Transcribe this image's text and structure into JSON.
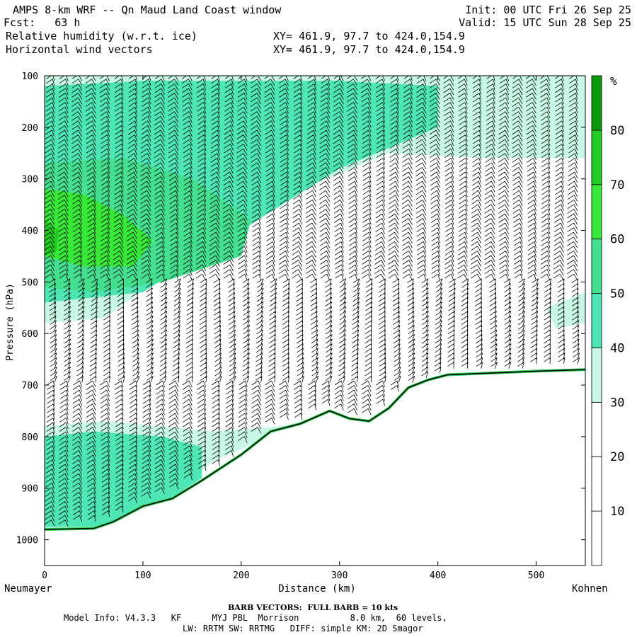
{
  "header": {
    "model_title": "AMPS 8-km WRF -- Qn Maud Land Coast window",
    "fcst_label": "Fcst:",
    "fcst_value": "63 h",
    "init_label": "Init:",
    "init_value": "00 UTC Fri 26 Sep 25",
    "valid_label": "Valid:",
    "valid_value": "15 UTC Sun 28 Sep 25",
    "field_fill": "Relative humidity (w.r.t. ice)",
    "field_vectors": "Horizontal wind vectors",
    "xy_fill": "XY= 461.9, 97.7 to 424.0,154.9",
    "xy_vectors": "XY= 461.9, 97.7 to 424.0,154.9"
  },
  "footer": {
    "barb_note": "BARB VECTORS:  FULL BARB = 10 kts",
    "model_info_1": "Model Info: V4.3.3   KF      MYJ PBL  Morrison          8.0 km,  60 levels,",
    "model_info_2": "LW: RRTM SW: RRTMG   DIFF: simple KM: 2D Smagor"
  },
  "chart_data": {
    "type": "cross-section",
    "xlabel": "Distance (km)",
    "ylabel": "Pressure (hPa)",
    "x_start_label": "Neumayer",
    "x_end_label": "Kohnen",
    "xlim": [
      0,
      550
    ],
    "ylim": [
      100,
      1050
    ],
    "x_ticks": [
      0,
      100,
      200,
      300,
      400,
      500
    ],
    "y_ticks": [
      100,
      200,
      300,
      400,
      500,
      600,
      700,
      800,
      900,
      1000
    ],
    "colorbar": {
      "unit": "%",
      "levels": [
        10,
        20,
        30,
        40,
        50,
        60,
        70,
        80
      ],
      "colors": [
        "#ffffff",
        "#ffffff",
        "#ffffff",
        "#c8f7e6",
        "#4de6b4",
        "#44e090",
        "#38e838",
        "#22cc22",
        "#0a9a0a"
      ]
    },
    "terrain_pressure_hPa": {
      "x": [
        0,
        50,
        70,
        100,
        130,
        160,
        200,
        230,
        260,
        290,
        310,
        330,
        350,
        370,
        390,
        410,
        450,
        500,
        550
      ],
      "p": [
        980,
        978,
        965,
        935,
        920,
        885,
        835,
        790,
        775,
        750,
        765,
        770,
        745,
        705,
        690,
        680,
        677,
        673,
        670
      ]
    },
    "rh_regions": [
      {
        "rh": 35,
        "x": [
          0,
          60,
          150,
          250,
          350,
          450,
          550,
          550,
          450,
          350,
          250,
          150,
          60,
          0
        ],
        "p": [
          100,
          100,
          100,
          100,
          100,
          100,
          100,
          260,
          260,
          250,
          330,
          450,
          570,
          580
        ]
      },
      {
        "rh": 45,
        "x": [
          0,
          100,
          200,
          300,
          400,
          400,
          300,
          200,
          100,
          0
        ],
        "p": [
          120,
          110,
          110,
          110,
          120,
          200,
          280,
          400,
          520,
          540
        ]
      },
      {
        "rh": 55,
        "x": [
          0,
          80,
          150,
          210,
          200,
          120,
          50,
          0
        ],
        "p": [
          270,
          260,
          300,
          380,
          450,
          500,
          520,
          510
        ]
      },
      {
        "rh": 65,
        "x": [
          0,
          40,
          80,
          110,
          90,
          40,
          0
        ],
        "p": [
          320,
          330,
          370,
          420,
          470,
          470,
          450
        ]
      },
      {
        "rh": 75,
        "x": [
          0,
          15,
          12,
          0
        ],
        "p": [
          380,
          400,
          440,
          450
        ]
      },
      {
        "rh": 35,
        "x": [
          0,
          60,
          120,
          170,
          240,
          290,
          290,
          240,
          170,
          120,
          60,
          0
        ],
        "p": [
          780,
          770,
          780,
          790,
          780,
          770,
          770,
          790,
          850,
          930,
          980,
          980
        ]
      },
      {
        "rh": 45,
        "x": [
          0,
          50,
          120,
          160,
          160,
          120,
          70,
          0
        ],
        "p": [
          800,
          790,
          800,
          820,
          880,
          930,
          975,
          975
        ]
      },
      {
        "rh": 35,
        "x": [
          510,
          550,
          550,
          520
        ],
        "p": [
          550,
          520,
          580,
          590
        ]
      }
    ],
    "wind_barbs_note": "Horizontal wind barbs at each column, full barb = 10 kts"
  }
}
